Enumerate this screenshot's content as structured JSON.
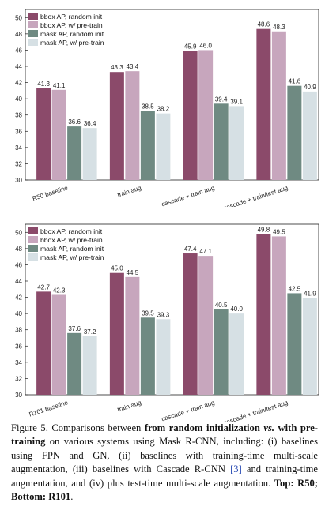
{
  "colors": {
    "bbox_random": "#8b4a6a",
    "bbox_pretrain": "#c7a6bd",
    "mask_random": "#6f8a82",
    "mask_pretrain": "#d6e0e4"
  },
  "chart_data": [
    {
      "type": "bar",
      "categories": [
        "R50 baseline",
        "train aug",
        "cascade + train aug",
        "cascade + train/test aug"
      ],
      "series": [
        {
          "name": "bbox AP, random init",
          "values": [
            41.3,
            43.3,
            45.9,
            48.6
          ]
        },
        {
          "name": "bbox AP, w/ pre-train",
          "values": [
            41.1,
            43.4,
            46.0,
            48.3
          ]
        },
        {
          "name": "mask AP, random init",
          "values": [
            36.6,
            38.5,
            39.4,
            41.6
          ]
        },
        {
          "name": "mask AP, w/ pre-train",
          "values": [
            36.4,
            38.2,
            39.1,
            40.9
          ]
        }
      ],
      "data_labels": [
        [
          "41.3",
          "41.1",
          "36.6",
          "36.4"
        ],
        [
          "43.3",
          "43.4",
          "38.5",
          "38.2"
        ],
        [
          "45.9",
          "46.0",
          "39.4",
          "39.1"
        ],
        [
          "48.6",
          "48.3",
          "41.6",
          "40.9"
        ]
      ],
      "ylim": [
        30,
        51
      ],
      "yticks": [
        "30",
        "32",
        "34",
        "36",
        "38",
        "40",
        "42",
        "44",
        "46",
        "48",
        "50"
      ],
      "legend_position": "top-left",
      "grid": false
    },
    {
      "type": "bar",
      "categories": [
        "R101 baseline",
        "train aug",
        "cascade + train aug",
        "cascade + train/test aug"
      ],
      "series": [
        {
          "name": "bbox AP, random init",
          "values": [
            42.7,
            45.0,
            47.4,
            49.8
          ]
        },
        {
          "name": "bbox AP, w/ pre-train",
          "values": [
            42.3,
            44.5,
            47.1,
            49.5
          ]
        },
        {
          "name": "mask AP, random init",
          "values": [
            37.6,
            39.5,
            40.5,
            42.5
          ]
        },
        {
          "name": "mask AP, w/ pre-train",
          "values": [
            37.2,
            39.3,
            40.0,
            41.9
          ]
        }
      ],
      "data_labels": [
        [
          "42.7",
          "42.3",
          "37.6",
          "37.2"
        ],
        [
          "45.0",
          "44.5",
          "39.5",
          "39.3"
        ],
        [
          "47.4",
          "47.1",
          "40.5",
          "40.0"
        ],
        [
          "49.8",
          "49.5",
          "42.5",
          "41.9"
        ]
      ],
      "ylim": [
        30,
        51
      ],
      "yticks": [
        "30",
        "32",
        "34",
        "36",
        "38",
        "40",
        "42",
        "44",
        "46",
        "48",
        "50"
      ],
      "legend_position": "top-left",
      "grid": false
    }
  ],
  "caption": {
    "prefix": "Figure 5. Comparisons between ",
    "bold1a": "from random initialization ",
    "vs": "vs.",
    "bold1b": " with pre-training",
    "text1": " on various systems using Mask R-CNN, including: (i) baselines using FPN and GN, (ii) baselines with training-time multi-scale augmentation, (iii) baselines with Cascade R-CNN ",
    "cite": "[3]",
    "text2": " and training-time augmentation, and (iv) plus test-time multi-scale augmentation. ",
    "bold2": "Top: R50; Bottom: R101",
    "suffix": "."
  }
}
